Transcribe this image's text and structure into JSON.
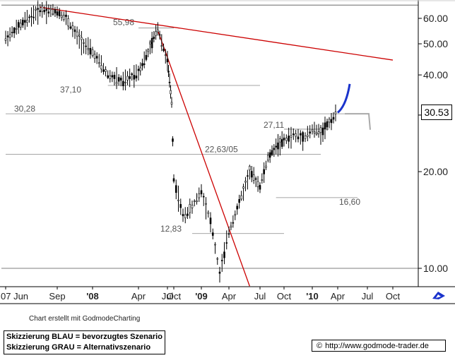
{
  "chart_data": {
    "type": "candlestick",
    "title": "",
    "scale": "log",
    "ylim": [
      8.8,
      68
    ],
    "y_ticks": [
      "10.00",
      "20.00",
      "30.00",
      "40.00",
      "50.00",
      "60.00"
    ],
    "y_tick_values": [
      10,
      20,
      30,
      40,
      50,
      60
    ],
    "x_ticks": [
      "07 Jun",
      "Sep",
      "'08",
      "Apr",
      "Jul",
      "Oct",
      "'09",
      "Apr",
      "Jul",
      "Oct",
      "'10",
      "Apr",
      "Jul",
      "Oct"
    ],
    "x_ticks_bold": [
      false,
      false,
      true,
      false,
      false,
      false,
      true,
      false,
      false,
      false,
      true,
      false,
      false,
      false
    ],
    "x_tick_dates": [
      "2007-06",
      "2007-09",
      "2008-01",
      "2008-04",
      "2008-07",
      "2008-10",
      "2009-01",
      "2009-04",
      "2009-07",
      "2009-10",
      "2010-01",
      "2010-04",
      "2010-07",
      "2010-10"
    ],
    "current_price": "30.53",
    "price_path": [
      [
        "2007-06",
        52
      ],
      [
        "2007-07",
        58
      ],
      [
        "2007-08",
        64
      ],
      [
        "2007-09",
        63
      ],
      [
        "2007-10",
        60
      ],
      [
        "2007-11",
        54
      ],
      [
        "2007-12",
        50
      ],
      [
        "2008-01",
        47
      ],
      [
        "2008-02",
        40
      ],
      [
        "2008-03",
        38
      ],
      [
        "2008-04",
        41
      ],
      [
        "2008-05",
        47
      ],
      [
        "2008-06",
        55.98
      ],
      [
        "2008-07",
        44
      ],
      [
        "2008-08",
        38
      ],
      [
        "2008-09",
        33
      ],
      [
        "2008-10",
        19
      ],
      [
        "2008-11",
        14.5
      ],
      [
        "2008-12",
        15.5
      ],
      [
        "2009-01",
        17.5
      ],
      [
        "2009-02",
        14
      ],
      [
        "2009-03",
        9.6
      ],
      [
        "2009-04",
        13
      ],
      [
        "2009-05",
        16
      ],
      [
        "2009-06",
        20
      ],
      [
        "2009-07",
        18
      ],
      [
        "2009-08",
        22
      ],
      [
        "2009-09",
        24
      ],
      [
        "2009-10",
        25
      ],
      [
        "2009-11",
        26
      ],
      [
        "2009-12",
        25.5
      ],
      [
        "2010-01",
        27
      ],
      [
        "2010-02",
        26.5
      ],
      [
        "2010-03",
        28.5
      ],
      [
        "2010-04",
        30.53
      ]
    ],
    "levels": [
      {
        "label": "55,98",
        "value": 55.98,
        "from": "2008-04",
        "to": "2008-10"
      },
      {
        "label": "37,10",
        "value": 37.1,
        "from": "2008-02",
        "to": "2009-07"
      },
      {
        "label": "30,28",
        "value": 30.28,
        "from": "2007-06",
        "to": "2010-06"
      },
      {
        "label": "27,11",
        "value": 27.11,
        "from": "2009-10",
        "to": "2010-03"
      },
      {
        "label": "22,63/05",
        "value": 22.63,
        "from": "2007-06",
        "to": "2010-02"
      },
      {
        "label": "16,60",
        "value": 16.6,
        "from": "2009-09",
        "to": "2010-06"
      },
      {
        "label": "12,83",
        "value": 12.83,
        "from": "2008-12",
        "to": "2009-10"
      }
    ],
    "reference_lines": [
      66,
      10
    ],
    "trendlines": [
      {
        "from": [
          "2007-08",
          65
        ],
        "to": [
          "2010-10",
          44.5
        ],
        "color": "#cc0000"
      },
      {
        "from": [
          "2008-06",
          55
        ],
        "to": [
          "2009-06",
          8.8
        ],
        "color": "#cc0000"
      }
    ],
    "scenario_blue": [
      [
        "2010-04",
        30.53
      ],
      [
        "2010-05",
        37.5
      ]
    ],
    "scenario_gray": [
      [
        "2010-04",
        30.28
      ],
      [
        "2010-05",
        30.28
      ],
      [
        "2010-05",
        27
      ]
    ],
    "colors": {
      "candle": "#000000",
      "trend": "#cc0000",
      "blue": "#1a33cc",
      "gray": "#aaaaaa",
      "level": "#888888"
    }
  },
  "footer": {
    "credit": "Chart erstellt mit GodmodeCharting",
    "legend_line1": "Skizzierung BLAU = bevorzugtes Szenario",
    "legend_line2": "Skizzierung GRAU = Alternativszenario",
    "copyright_symbol": "©",
    "url": "http://www.godmode-trader.de"
  },
  "icons": {
    "logo": "godmode-logo-icon"
  }
}
